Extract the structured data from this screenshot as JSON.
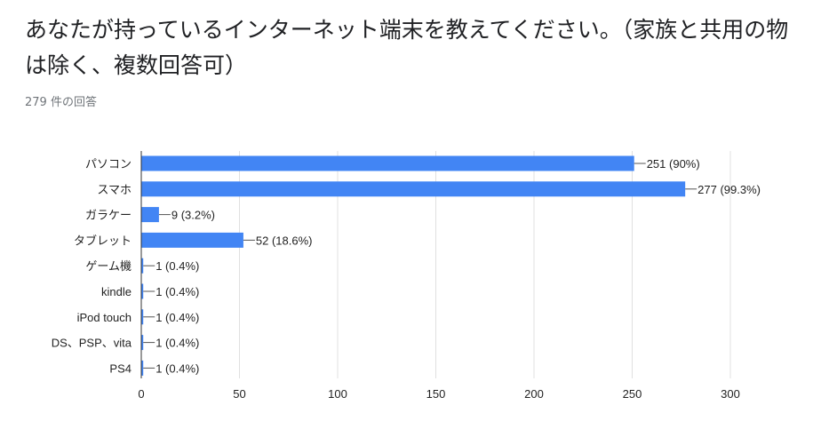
{
  "question": {
    "title": "あなたが持っているインターネット端末を教えてください。（家族と共用の物は除く、複数回答可）",
    "response_count": "279 件の回答"
  },
  "colors": {
    "bar": "#4285f4",
    "grid": "#e0e0e0",
    "axis": "#333333",
    "label": "#222222"
  },
  "chart_data": {
    "type": "bar",
    "orientation": "horizontal",
    "categories": [
      "パソコン",
      "スマホ",
      "ガラケー",
      "タブレット",
      "ゲーム機",
      "kindle",
      "iPod touch",
      "DS、PSP、vita",
      "PS4"
    ],
    "values": [
      251,
      277,
      9,
      52,
      1,
      1,
      1,
      1,
      1
    ],
    "data_labels": [
      "251 (90%)",
      "277 (99.3%)",
      "9 (3.2%)",
      "52 (18.6%)",
      "1 (0.4%)",
      "1 (0.4%)",
      "1 (0.4%)",
      "1 (0.4%)",
      "1 (0.4%)"
    ],
    "xlim": [
      0,
      300
    ],
    "xticks": [
      0,
      50,
      100,
      150,
      200,
      250,
      300
    ],
    "grid": true,
    "legend": "none"
  }
}
